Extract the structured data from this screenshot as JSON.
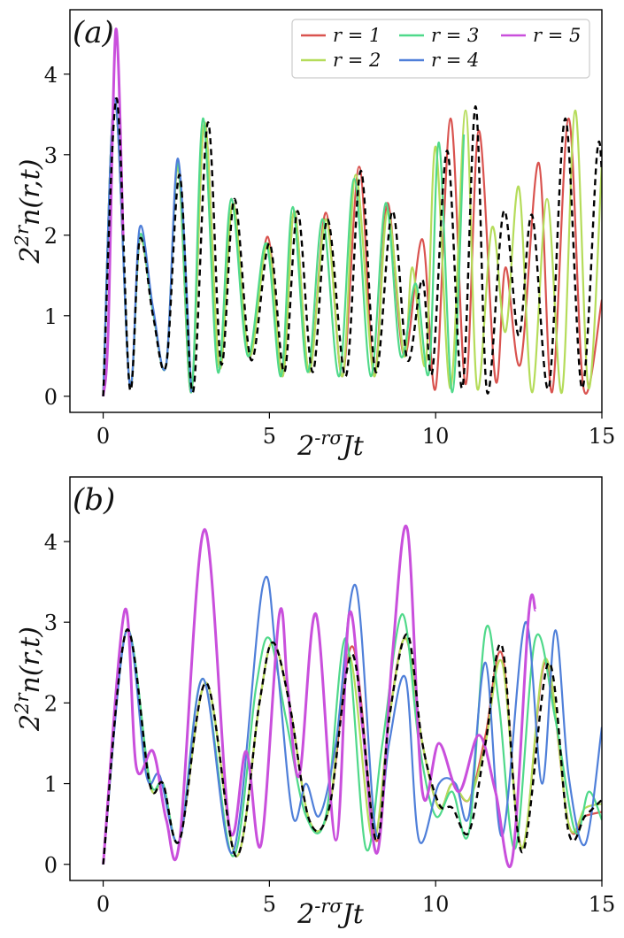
{
  "colors": {
    "r1": "#d9534f",
    "r2": "#b5dc5a",
    "r3": "#4fd98a",
    "r4": "#4f7fd9",
    "r5": "#c94fdc",
    "ref": "#000000"
  },
  "chart_data": [
    {
      "type": "line",
      "panel_label": "(a)",
      "xlabel": "2^{-rσ}Jt",
      "ylabel": "2^{2r}n(r,t)",
      "xlim": [
        -1,
        15
      ],
      "ylim": [
        -0.2,
        4.8
      ],
      "xticks": [
        0,
        5,
        10,
        15
      ],
      "yticks": [
        0,
        1,
        2,
        3,
        4
      ],
      "legend": {
        "placement": "top-right",
        "entries": [
          "r = 1",
          "r = 2",
          "r = 3",
          "r = 4",
          "r = 5"
        ]
      },
      "series": [
        {
          "name": "r = 1",
          "color_key": "r1",
          "style": "solid",
          "x": [
            0,
            0.35,
            0.8,
            1.1,
            1.5,
            1.9,
            2.25,
            2.65,
            3.05,
            3.5,
            3.9,
            4.4,
            4.95,
            5.4,
            5.75,
            6.2,
            6.7,
            7.2,
            7.7,
            8.15,
            8.55,
            9.05,
            9.6,
            10.0,
            10.45,
            10.9,
            11.3,
            11.8,
            12.1,
            12.55,
            13.1,
            13.5,
            14.0,
            14.45,
            15.0
          ],
          "y": [
            0,
            3.7,
            0.15,
            1.95,
            1.05,
            0.4,
            2.85,
            0.05,
            3.4,
            0.35,
            2.4,
            0.5,
            1.98,
            0.25,
            2.3,
            0.3,
            2.28,
            0.25,
            2.85,
            0.25,
            2.4,
            0.5,
            1.95,
            0.1,
            3.45,
            0.15,
            3.3,
            0.2,
            1.6,
            0.4,
            2.9,
            0.05,
            3.45,
            0.1,
            1.2
          ]
        },
        {
          "name": "r = 2",
          "color_key": "r2",
          "style": "solid",
          "x": [
            0,
            0.35,
            0.8,
            1.1,
            1.5,
            1.9,
            2.25,
            2.65,
            3.05,
            3.5,
            3.9,
            4.4,
            4.95,
            5.4,
            5.75,
            6.2,
            6.7,
            7.2,
            7.6,
            8.15,
            8.55,
            9.05,
            9.3,
            9.7,
            10.0,
            10.45,
            10.9,
            11.25,
            11.7,
            12.1,
            12.5,
            12.9,
            13.35,
            13.8,
            14.2,
            14.6,
            15.0
          ],
          "y": [
            0,
            3.7,
            0.15,
            1.95,
            1.05,
            0.4,
            2.85,
            0.05,
            3.4,
            0.35,
            2.4,
            0.5,
            1.9,
            0.25,
            2.3,
            0.3,
            2.2,
            0.25,
            2.75,
            0.25,
            2.3,
            0.5,
            1.6,
            0.4,
            3.1,
            0.1,
            3.55,
            0.1,
            2.1,
            0.8,
            2.6,
            0.05,
            2.45,
            0.05,
            3.55,
            0.1,
            2.9
          ]
        },
        {
          "name": "r = 3",
          "color_key": "r3",
          "style": "solid",
          "x": [
            0,
            0.35,
            0.8,
            1.1,
            1.5,
            1.9,
            2.25,
            2.65,
            3.0,
            3.45,
            3.85,
            4.35,
            4.9,
            5.35,
            5.7,
            6.15,
            6.6,
            7.1,
            7.55,
            8.05,
            8.5,
            8.95,
            9.4,
            9.8,
            10.1,
            10.5,
            10.85
          ],
          "y": [
            0,
            3.7,
            0.15,
            2.0,
            1.05,
            0.4,
            2.9,
            0.05,
            3.45,
            0.3,
            2.45,
            0.5,
            1.9,
            0.25,
            2.35,
            0.3,
            2.2,
            0.25,
            2.7,
            0.25,
            2.4,
            0.5,
            1.4,
            0.3,
            3.15,
            0.05,
            3.25
          ]
        },
        {
          "name": "r = 4",
          "color_key": "r4",
          "style": "solid",
          "x": [
            0,
            0.35,
            0.8,
            1.1,
            1.5,
            1.9,
            2.25,
            2.65
          ],
          "y": [
            0,
            3.7,
            0.15,
            2.1,
            1.1,
            0.4,
            2.95,
            0.05
          ]
        },
        {
          "name": "r = 5",
          "color_key": "r5",
          "style": "solid",
          "x": [
            0,
            0.15,
            0.38,
            0.6
          ],
          "y": [
            0,
            0.8,
            4.55,
            2.0
          ]
        },
        {
          "name": "",
          "color_key": "ref",
          "style": "dashed",
          "x": [
            0,
            0.4,
            0.8,
            1.1,
            1.5,
            1.9,
            2.3,
            2.7,
            3.15,
            3.55,
            3.95,
            4.45,
            5.0,
            5.45,
            5.85,
            6.3,
            6.75,
            7.3,
            7.75,
            8.2,
            8.7,
            9.15,
            9.6,
            9.9,
            10.35,
            10.8,
            11.2,
            11.55,
            12.05,
            12.5,
            12.9,
            13.4,
            13.9,
            14.4,
            14.85,
            15.0
          ],
          "y": [
            0,
            3.7,
            0.1,
            1.95,
            1.0,
            0.4,
            2.75,
            0.05,
            3.4,
            0.4,
            2.45,
            0.45,
            1.9,
            0.3,
            2.3,
            0.3,
            2.2,
            0.25,
            2.8,
            0.3,
            2.3,
            0.45,
            1.45,
            0.3,
            3.05,
            0.1,
            3.6,
            0.05,
            2.3,
            0.75,
            2.25,
            0.1,
            3.45,
            0.1,
            3.0,
            2.8
          ]
        }
      ]
    },
    {
      "type": "line",
      "panel_label": "(b)",
      "xlabel": "2^{-rσ}Jt",
      "ylabel": "2^{2r}n(r,t)",
      "xlim": [
        -1,
        15
      ],
      "ylim": [
        -0.2,
        4.8
      ],
      "xticks": [
        0,
        5,
        10,
        15
      ],
      "yticks": [
        0,
        1,
        2,
        3,
        4
      ],
      "series": [
        {
          "name": "r = 1",
          "color_key": "r1",
          "style": "solid",
          "x": [
            0,
            0.7,
            1.4,
            1.8,
            2.3,
            3.1,
            4.0,
            4.7,
            5.1,
            5.6,
            6.2,
            6.8,
            7.5,
            8.2,
            8.6,
            9.1,
            9.6,
            10.1,
            10.5,
            11.0,
            11.5,
            12.0,
            12.6,
            13.3,
            14.0,
            14.5,
            15.0
          ],
          "y": [
            0,
            2.9,
            1.0,
            1.0,
            0.3,
            2.25,
            0.1,
            2.0,
            2.75,
            2.0,
            0.55,
            0.7,
            2.7,
            0.3,
            1.8,
            2.8,
            1.5,
            0.7,
            1.0,
            0.8,
            1.6,
            2.6,
            0.2,
            2.5,
            0.5,
            0.6,
            0.65
          ]
        },
        {
          "name": "r = 2",
          "color_key": "r2",
          "style": "solid",
          "x": [
            0,
            0.7,
            1.4,
            1.8,
            2.3,
            3.1,
            4.0,
            4.7,
            5.1,
            5.6,
            6.2,
            6.8,
            7.4,
            8.1,
            8.6,
            9.1,
            9.6,
            10.1,
            10.5,
            11.0,
            11.5,
            12.0,
            12.6,
            13.3,
            14.0,
            14.5,
            15.0
          ],
          "y": [
            0,
            2.9,
            1.0,
            1.0,
            0.3,
            2.25,
            0.1,
            2.0,
            2.75,
            2.0,
            0.55,
            0.7,
            2.6,
            0.3,
            1.8,
            2.8,
            1.5,
            0.7,
            1.0,
            0.8,
            1.5,
            2.5,
            0.2,
            2.55,
            0.5,
            0.7,
            0.75
          ]
        },
        {
          "name": "r = 3",
          "color_key": "r3",
          "style": "solid",
          "x": [
            0,
            0.7,
            1.4,
            1.8,
            2.3,
            3.0,
            3.9,
            4.6,
            5.0,
            5.5,
            6.1,
            6.7,
            7.3,
            7.9,
            8.4,
            9.0,
            9.5,
            10.0,
            10.5,
            11.0,
            11.5,
            11.9,
            12.4,
            13.0,
            13.6,
            14.2,
            14.6,
            15.0
          ],
          "y": [
            0,
            2.9,
            1.05,
            1.0,
            0.3,
            2.3,
            0.1,
            2.2,
            2.8,
            1.8,
            0.6,
            0.6,
            2.8,
            0.2,
            1.5,
            3.1,
            1.5,
            0.6,
            0.9,
            0.4,
            2.9,
            2.0,
            0.2,
            2.8,
            1.8,
            0.4,
            0.9,
            0.55
          ]
        },
        {
          "name": "r = 4",
          "color_key": "r4",
          "style": "solid",
          "x": [
            0,
            0.7,
            1.3,
            1.7,
            2.3,
            3.0,
            3.9,
            4.8,
            5.2,
            5.7,
            6.1,
            6.5,
            7.0,
            7.6,
            8.2,
            8.6,
            9.1,
            9.5,
            10.1,
            10.6,
            11.0,
            11.5,
            12.0,
            12.7,
            13.2,
            13.6,
            14.0,
            14.5,
            15.0
          ],
          "y": [
            0,
            2.9,
            1.1,
            1.1,
            0.3,
            2.3,
            0.15,
            3.45,
            2.6,
            0.6,
            1.0,
            0.6,
            1.5,
            3.45,
            0.4,
            1.5,
            2.3,
            0.3,
            1.0,
            1.0,
            0.6,
            2.5,
            0.35,
            3.0,
            1.0,
            2.9,
            1.1,
            0.25,
            1.7
          ]
        },
        {
          "name": "r = 5",
          "color_key": "r5",
          "style": "solid",
          "x": [
            0,
            0.65,
            1.0,
            1.5,
            1.9,
            2.3,
            3.05,
            3.8,
            4.3,
            4.75,
            5.3,
            5.55,
            5.9,
            6.4,
            7.0,
            7.4,
            7.8,
            8.25,
            8.7,
            9.15,
            9.6,
            10.1,
            10.7,
            11.3,
            11.8,
            12.3,
            12.8,
            13.0
          ],
          "y": [
            0,
            3.15,
            1.2,
            1.4,
            0.55,
            0.3,
            4.15,
            0.45,
            1.4,
            0.25,
            3.1,
            2.2,
            1.1,
            3.1,
            0.3,
            3.1,
            1.7,
            0.15,
            2.6,
            4.15,
            0.9,
            1.5,
            0.9,
            1.6,
            0.9,
            0.05,
            3.1,
            3.15
          ]
        },
        {
          "name": "",
          "color_key": "ref",
          "style": "dashed",
          "x": [
            0,
            0.7,
            1.4,
            1.8,
            2.3,
            3.1,
            4.0,
            4.7,
            5.1,
            5.6,
            6.2,
            6.8,
            7.5,
            8.2,
            8.6,
            9.15,
            9.6,
            10.1,
            10.5,
            11.0,
            11.5,
            12.0,
            12.6,
            13.4,
            14.0,
            14.5,
            15.0
          ],
          "y": [
            0,
            2.9,
            1.0,
            1.0,
            0.3,
            2.25,
            0.1,
            2.0,
            2.75,
            2.0,
            0.55,
            0.7,
            2.6,
            0.3,
            1.8,
            2.85,
            1.5,
            0.75,
            0.7,
            0.4,
            1.5,
            2.7,
            0.15,
            2.5,
            0.4,
            0.6,
            0.8
          ]
        }
      ]
    }
  ]
}
